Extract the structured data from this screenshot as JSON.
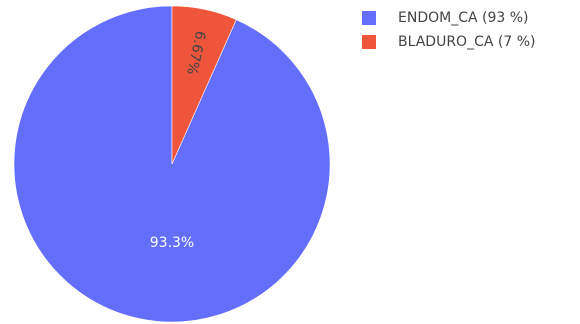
{
  "chart_data": {
    "type": "pie",
    "slices": [
      {
        "name": "ENDOM_CA",
        "legend_label": "ENDOM_CA (93 %)",
        "value": 93.33,
        "label": "93.3%",
        "color": "#636efa",
        "label_color": "#ffffff"
      },
      {
        "name": "BLADURO_CA",
        "legend_label": "BLADURO_CA (7 %)",
        "value": 6.67,
        "label": "6.67%",
        "color": "#ef553b",
        "label_color": "#444444"
      }
    ],
    "legend_position": "top-right",
    "direction": "counterclockwise",
    "start": "top"
  }
}
